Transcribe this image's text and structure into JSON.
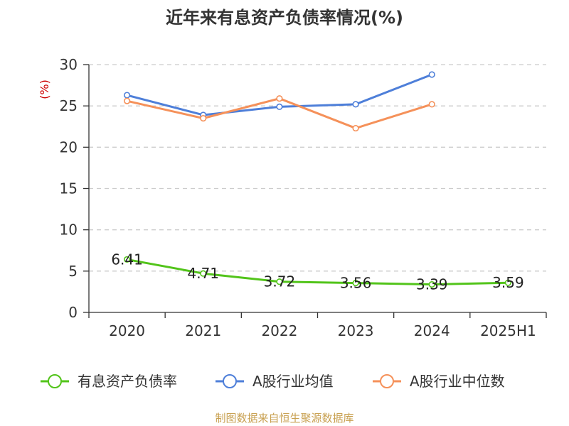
{
  "chart_data": {
    "type": "line",
    "title": "近年来有息资产负债率情况(%)",
    "ylabel": "(%)",
    "categories": [
      "2020",
      "2021",
      "2022",
      "2023",
      "2024",
      "2025H1"
    ],
    "ylim": [
      0,
      30
    ],
    "yticks": [
      0,
      5,
      10,
      15,
      20,
      25,
      30
    ],
    "grid": true,
    "legend_position": "bottom",
    "series": [
      {
        "name": "有息资产负债率",
        "color": "#52c41a",
        "values": [
          6.41,
          4.71,
          3.72,
          3.56,
          3.39,
          3.59
        ],
        "labels": [
          "6.41",
          "4.71",
          "3.72",
          "3.56",
          "3.39",
          "3.59"
        ]
      },
      {
        "name": "A股行业均值",
        "color": "#4e7fd9",
        "values": [
          26.3,
          23.9,
          24.9,
          25.2,
          28.8,
          null
        ]
      },
      {
        "name": "A股行业中位数",
        "color": "#f5915a",
        "values": [
          25.6,
          23.5,
          25.9,
          22.3,
          25.2,
          null
        ]
      }
    ],
    "source": "制图数据来自恒生聚源数据库",
    "colors": {
      "unit": "#cc0000",
      "source": "#c8a050",
      "axis": "#333333",
      "grid": "#cccccc"
    }
  }
}
